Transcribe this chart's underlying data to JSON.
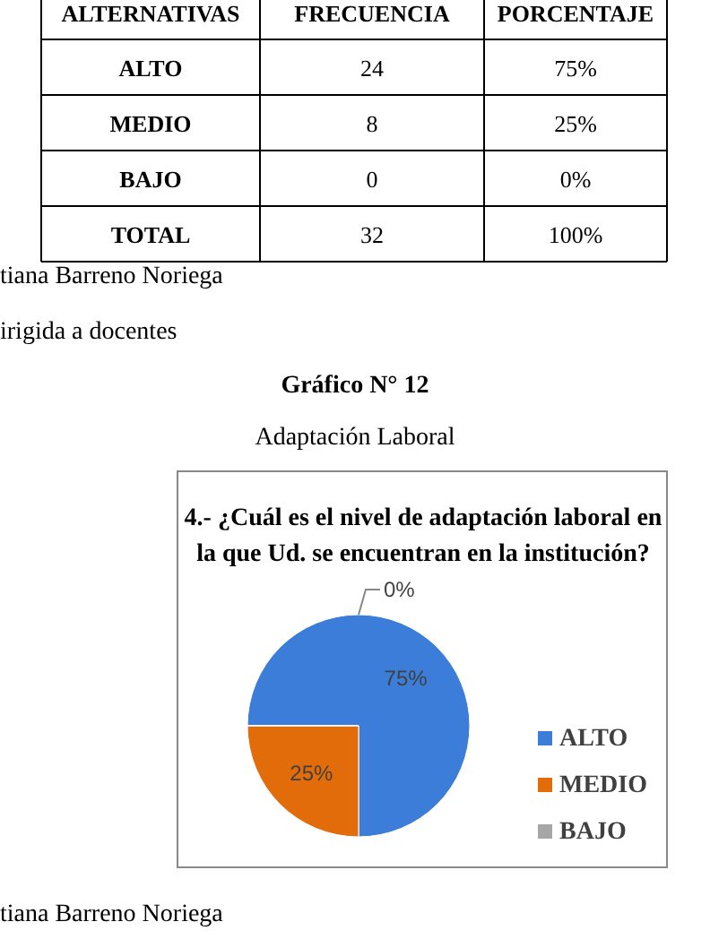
{
  "chart_data": {
    "type": "pie",
    "title": "4.- ¿Cuál  es el nivel de adaptación  laboral en la  que Ud.  se  encuentran en la institución?",
    "categories": [
      "ALTO",
      "MEDIO",
      "BAJO"
    ],
    "values": [
      75,
      25,
      0
    ],
    "colors": [
      "#3b7dd8",
      "#e36c0a",
      "#a6a6a6"
    ],
    "value_labels": [
      "75%",
      "25%",
      "0%"
    ],
    "legend": "right",
    "annotations": [
      "ALTERNATIVAS",
      "FRECUENCIA",
      "PORCENTAJE",
      "ALTO",
      "24",
      "75%",
      "MEDIO",
      "8",
      "25%",
      "BAJO",
      "0",
      "0%",
      "TOTAL",
      "32",
      "100%",
      "tiana Barreno Noriega",
      "irigida a docentes",
      "Gráfico N° 12",
      "Adaptación Laboral",
      "tiana Barreno Noriega"
    ]
  }
}
